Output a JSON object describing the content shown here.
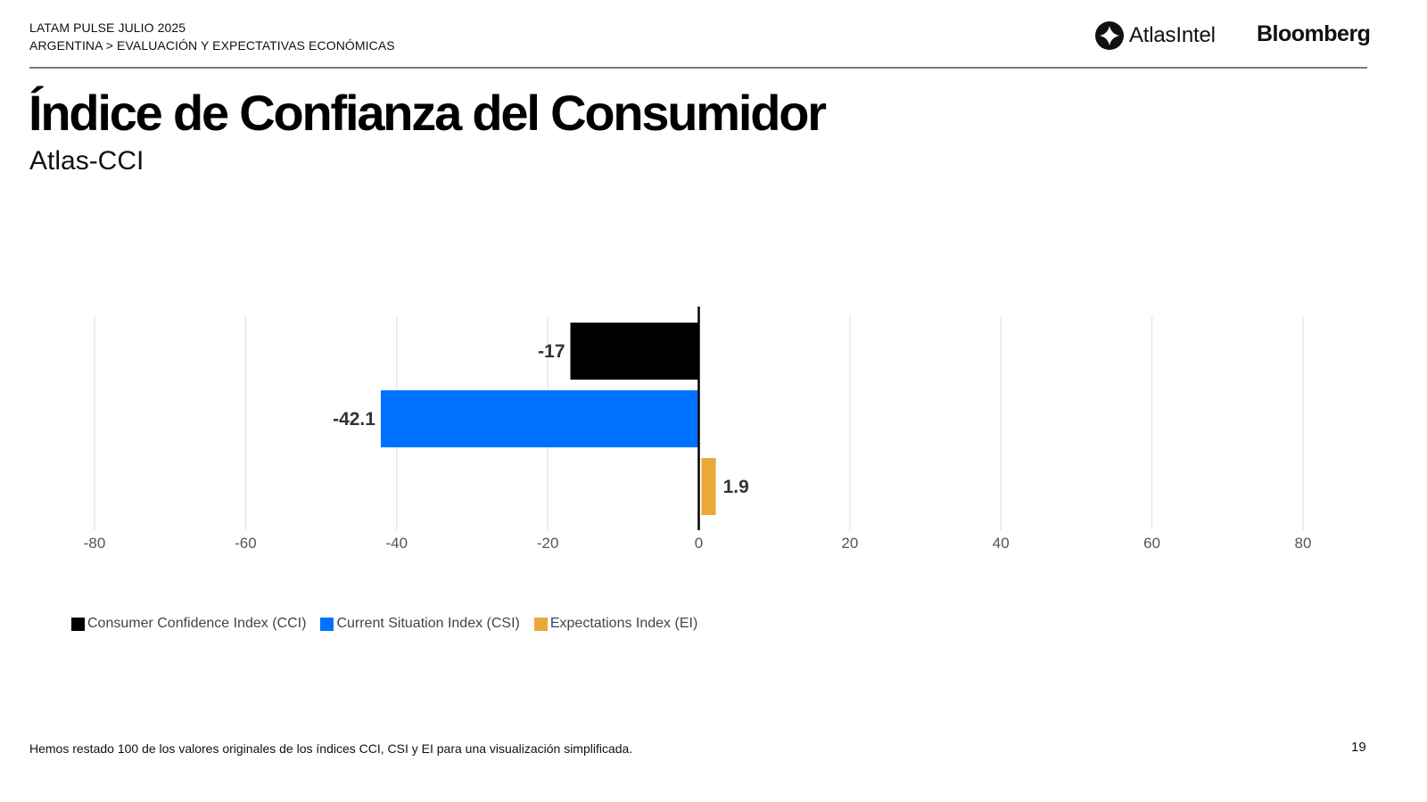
{
  "header": {
    "line1": "LATAM PULSE JULIO 2025",
    "line2": "ARGENTINA > EVALUACIÓN Y EXPECTATIVAS ECONÓMICAS",
    "logo_atlas": "AtlasIntel",
    "logo_bloomberg": "Bloomberg"
  },
  "title": "Índice de Confianza del Consumidor",
  "subtitle": "Atlas-CCI",
  "footnote": "Hemos restado 100 de los valores originales de los índices CCI, CSI y EI para una visualización simplificada.",
  "page_number": "19",
  "colors": {
    "cci": "#000000",
    "csi": "#0072FF",
    "ei": "#E8A83A",
    "grid": "#e8e8e8",
    "zero_line": "#000000",
    "tick_label": "#555555",
    "data_label": "#333333"
  },
  "chart_data": {
    "type": "bar",
    "orientation": "horizontal",
    "title": "",
    "xlabel": "",
    "ylabel": "",
    "xlim": [
      -80,
      80
    ],
    "xticks": [
      -80,
      -60,
      -40,
      -20,
      0,
      20,
      40,
      60,
      80
    ],
    "grid": true,
    "legend_position": "bottom-left",
    "series": [
      {
        "name": "Consumer Confidence Index (CCI)",
        "value": -17,
        "label": "-17",
        "color_key": "cci"
      },
      {
        "name": "Current Situation Index (CSI)",
        "value": -42.1,
        "label": "-42.1",
        "color_key": "csi"
      },
      {
        "name": "Expectations Index (EI)",
        "value": 1.9,
        "label": "1.9",
        "color_key": "ei"
      }
    ]
  }
}
